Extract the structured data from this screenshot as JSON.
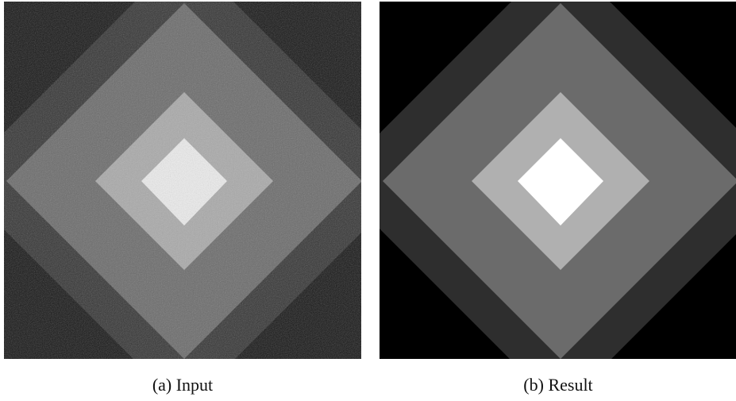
{
  "figure": {
    "panels": [
      {
        "caption": "(a) Input"
      },
      {
        "caption": "(b) Result"
      }
    ]
  }
}
